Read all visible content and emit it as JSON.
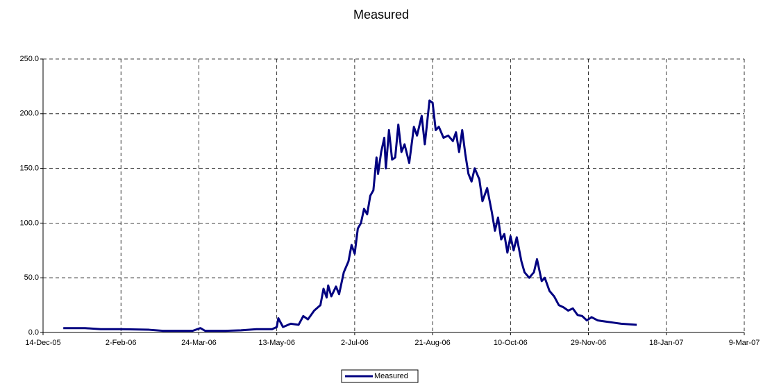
{
  "chart_data": {
    "type": "line",
    "title": "Measured",
    "x": [
      "2005-12-27",
      "2006-01-10",
      "2006-01-20",
      "2006-02-02",
      "2006-02-20",
      "2006-03-01",
      "2006-03-20",
      "2006-03-25",
      "2006-03-28",
      "2006-04-10",
      "2006-04-20",
      "2006-04-30",
      "2006-05-10",
      "2006-05-13",
      "2006-05-14",
      "2006-05-17",
      "2006-05-22",
      "2006-05-27",
      "2006-05-30",
      "2006-06-02",
      "2006-06-06",
      "2006-06-10",
      "2006-06-12",
      "2006-06-14",
      "2006-06-15",
      "2006-06-17",
      "2006-06-20",
      "2006-06-22",
      "2006-06-25",
      "2006-06-28",
      "2006-06-30",
      "2006-07-02",
      "2006-07-04",
      "2006-07-06",
      "2006-07-08",
      "2006-07-10",
      "2006-07-12",
      "2006-07-14",
      "2006-07-16",
      "2006-07-17",
      "2006-07-19",
      "2006-07-21",
      "2006-07-22",
      "2006-07-24",
      "2006-07-26",
      "2006-07-28",
      "2006-07-30",
      "2006-08-01",
      "2006-08-03",
      "2006-08-06",
      "2006-08-09",
      "2006-08-11",
      "2006-08-14",
      "2006-08-16",
      "2006-08-19",
      "2006-08-21",
      "2006-08-23",
      "2006-08-25",
      "2006-08-28",
      "2006-08-31",
      "2006-09-03",
      "2006-09-05",
      "2006-09-07",
      "2006-09-09",
      "2006-09-11",
      "2006-09-13",
      "2006-09-15",
      "2006-09-17",
      "2006-09-20",
      "2006-09-22",
      "2006-09-25",
      "2006-09-28",
      "2006-09-30",
      "2006-10-02",
      "2006-10-04",
      "2006-10-06",
      "2006-10-08",
      "2006-10-10",
      "2006-10-12",
      "2006-10-14",
      "2006-10-17",
      "2006-10-19",
      "2006-10-22",
      "2006-10-25",
      "2006-10-27",
      "2006-10-30",
      "2006-11-01",
      "2006-11-04",
      "2006-11-07",
      "2006-11-10",
      "2006-11-13",
      "2006-11-16",
      "2006-11-19",
      "2006-11-22",
      "2006-11-25",
      "2006-11-28",
      "2006-12-01",
      "2006-12-05",
      "2006-12-10",
      "2006-12-15",
      "2006-12-20",
      "2006-12-30"
    ],
    "series": [
      {
        "name": "Measured",
        "color": "#000080",
        "values": [
          4,
          4,
          3,
          3,
          2.5,
          1.5,
          1.5,
          4,
          1.5,
          1.5,
          2,
          3,
          3,
          5,
          13,
          5,
          8,
          7,
          15,
          12,
          20,
          25,
          40,
          32,
          43,
          33,
          42,
          35,
          55,
          65,
          80,
          72,
          95,
          100,
          113,
          108,
          125,
          130,
          160,
          145,
          165,
          178,
          150,
          185,
          158,
          160,
          190,
          165,
          172,
          155,
          188,
          180,
          198,
          172,
          212,
          210,
          185,
          188,
          178,
          180,
          175,
          183,
          165,
          185,
          163,
          145,
          138,
          150,
          140,
          120,
          132,
          110,
          93,
          105,
          85,
          90,
          73,
          88,
          75,
          87,
          65,
          55,
          50,
          55,
          67,
          47,
          50,
          38,
          33,
          25,
          23,
          20,
          22,
          16,
          15,
          11,
          14,
          11,
          10,
          9,
          8,
          7
        ]
      }
    ],
    "xlim": [
      "2005-12-14",
      "2007-03-09"
    ],
    "xticks": [
      {
        "value": "2005-12-14",
        "label": "14-Dec-05"
      },
      {
        "value": "2006-02-02",
        "label": "2-Feb-06"
      },
      {
        "value": "2006-03-24",
        "label": "24-Mar-06"
      },
      {
        "value": "2006-05-13",
        "label": "13-May-06"
      },
      {
        "value": "2006-07-02",
        "label": "2-Jul-06"
      },
      {
        "value": "2006-08-21",
        "label": "21-Aug-06"
      },
      {
        "value": "2006-10-10",
        "label": "10-Oct-06"
      },
      {
        "value": "2006-11-29",
        "label": "29-Nov-06"
      },
      {
        "value": "2007-01-18",
        "label": "18-Jan-07"
      },
      {
        "value": "2007-03-09",
        "label": "9-Mar-07"
      }
    ],
    "ylim": [
      0,
      250
    ],
    "yticks": [
      {
        "value": 0,
        "label": "0.0"
      },
      {
        "value": 50,
        "label": "50.0"
      },
      {
        "value": 100,
        "label": "100.0"
      },
      {
        "value": 150,
        "label": "150.0"
      },
      {
        "value": 200,
        "label": "200.0"
      },
      {
        "value": 250,
        "label": "250.0"
      }
    ],
    "grid": true,
    "legend": "bottom"
  }
}
